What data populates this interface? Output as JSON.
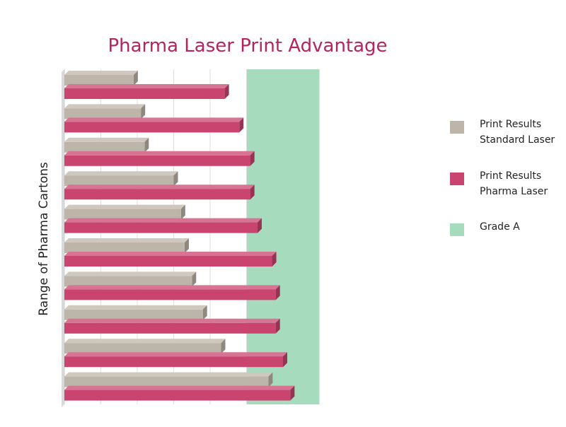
{
  "chart_data": {
    "type": "bar",
    "orientation": "horizontal",
    "title": "Pharma Laser Print Advantage",
    "xlabel": "",
    "ylabel": "Range of Pharma Cartons",
    "xlim": [
      0,
      10
    ],
    "grid": true,
    "legend_position": "right",
    "categories": [
      "",
      "",
      "",
      "",
      "",
      "",
      "",
      "",
      "",
      ""
    ],
    "series": [
      {
        "name": "Print Results Standard Laser",
        "color": "#bdb5a9",
        "values": [
          1.9,
          2.1,
          2.2,
          3.0,
          3.2,
          3.3,
          3.5,
          3.8,
          4.3,
          5.6
        ]
      },
      {
        "name": "Print Results Pharma Laser",
        "color": "#c9446f",
        "values": [
          4.4,
          4.8,
          5.1,
          5.1,
          5.3,
          5.7,
          5.8,
          5.8,
          6.0,
          6.2
        ]
      }
    ],
    "bands": [
      {
        "name": "Grade A",
        "color": "#a6dbbd",
        "from": 5.0,
        "to": 7.0
      }
    ]
  },
  "legend": {
    "items": [
      {
        "lines": [
          "Print Results",
          "Standard Laser"
        ],
        "color": "#bdb5a9"
      },
      {
        "lines": [
          "Print Results",
          "Pharma Laser"
        ],
        "color": "#c9446f"
      },
      {
        "lines": [
          "Grade A"
        ],
        "color": "#a6dbbd"
      }
    ]
  }
}
